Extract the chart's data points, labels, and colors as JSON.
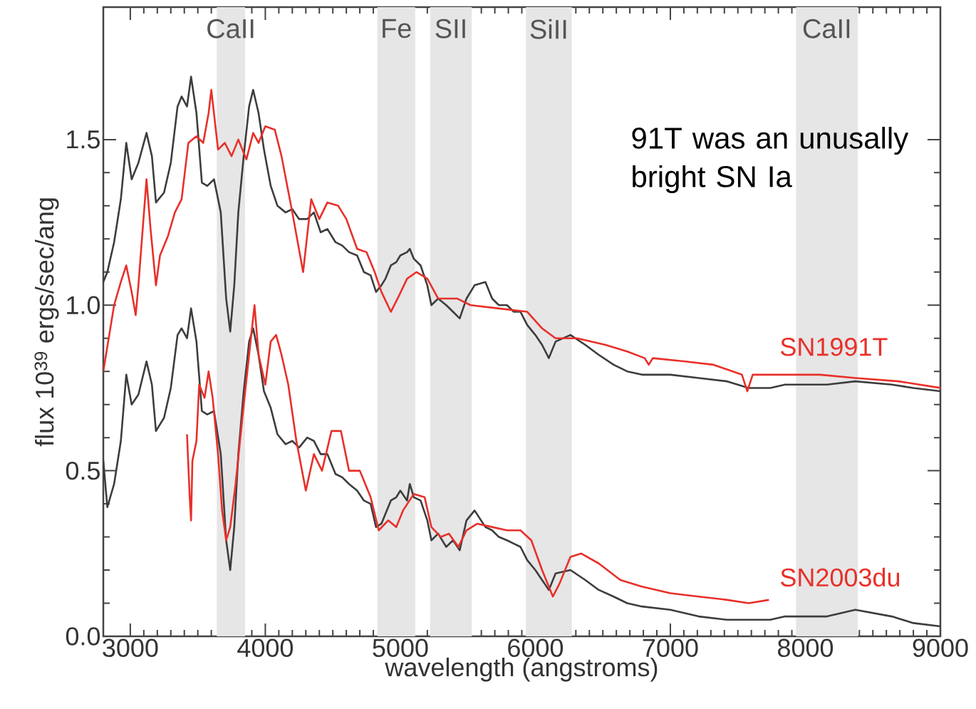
{
  "chart_data": {
    "type": "line",
    "xlabel": "wavelength (angstroms)",
    "ylabel": "flux 10$^{39}$ ergs/sec/ang",
    "xlim": [
      2800,
      9000
    ],
    "ylim": [
      0,
      1.9
    ],
    "xticks": [
      3000,
      4000,
      5000,
      6000,
      7000,
      8000,
      9000
    ],
    "yticks": [
      {
        "value": 0,
        "label": "0.0"
      },
      {
        "value": 0.5,
        "label": "0.5"
      },
      {
        "value": 1,
        "label": "1.0"
      },
      {
        "value": 1.5,
        "label": "1.5"
      }
    ],
    "annotations": [
      "91T was an unusally bright SN Ia"
    ],
    "bands": [
      {
        "axis": "x",
        "from": 3640,
        "to": 3850,
        "label": "CaII",
        "color": "#e6e6e6"
      },
      {
        "axis": "x",
        "from": 4830,
        "to": 5110,
        "label": "Fe",
        "color": "#e6e6e6"
      },
      {
        "axis": "x",
        "from": 5220,
        "to": 5530,
        "label": "SII",
        "color": "#e6e6e6"
      },
      {
        "axis": "x",
        "from": 5930,
        "to": 6270,
        "label": "SiII",
        "color": "#e6e6e6"
      },
      {
        "axis": "x",
        "from": 7930,
        "to": 8390,
        "label": "CaII",
        "color": "#e6e6e6"
      }
    ],
    "series": [
      {
        "color": "#3d3d3d",
        "x": [
          2800,
          2830,
          2880,
          2930,
          2970,
          3010,
          3060,
          3120,
          3160,
          3190,
          3250,
          3300,
          3350,
          3380,
          3420,
          3450,
          3490,
          3530,
          3570,
          3620,
          3670,
          3710,
          3740,
          3770,
          3800,
          3840,
          3880,
          3910,
          3950,
          3990,
          4040,
          4090,
          4150,
          4200,
          4250,
          4310,
          4360,
          4410,
          4460,
          4520,
          4570,
          4620,
          4680,
          4730,
          4780,
          4820,
          4860,
          4890,
          4930,
          4970,
          5000,
          5050,
          5070,
          5100,
          5150,
          5200,
          5230,
          5280,
          5340,
          5390,
          5440,
          5490,
          5550,
          5630,
          5680,
          5730,
          5790,
          5840,
          5890,
          5940,
          6000,
          6050,
          6100,
          6150,
          6260,
          6370,
          6470,
          6580,
          6680,
          6790,
          7000,
          7210,
          7420,
          7580,
          7740,
          7850,
          8000,
          8160,
          8370,
          8640,
          8800,
          9000
        ],
        "values": [
          1.07,
          1.1,
          1.19,
          1.32,
          1.49,
          1.38,
          1.43,
          1.52,
          1.45,
          1.31,
          1.34,
          1.43,
          1.6,
          1.63,
          1.6,
          1.69,
          1.58,
          1.37,
          1.36,
          1.38,
          1.28,
          1.02,
          0.92,
          1.06,
          1.28,
          1.45,
          1.6,
          1.65,
          1.58,
          1.47,
          1.36,
          1.3,
          1.28,
          1.29,
          1.26,
          1.26,
          1.28,
          1.22,
          1.23,
          1.19,
          1.18,
          1.16,
          1.15,
          1.1,
          1.09,
          1.04,
          1.06,
          1.08,
          1.12,
          1.13,
          1.15,
          1.16,
          1.17,
          1.14,
          1.12,
          1.06,
          1.0,
          1.02,
          1.0,
          0.98,
          0.96,
          1.02,
          1.06,
          1.07,
          1.02,
          1.0,
          1.0,
          0.98,
          0.98,
          0.94,
          0.91,
          0.88,
          0.84,
          0.89,
          0.91,
          0.88,
          0.85,
          0.82,
          0.8,
          0.79,
          0.79,
          0.78,
          0.77,
          0.75,
          0.75,
          0.76,
          0.76,
          0.76,
          0.77,
          0.76,
          0.75,
          0.74
        ]
      },
      {
        "name": "SN1991T",
        "color": "#e8302a",
        "x": [
          2800,
          2880,
          2930,
          2970,
          3010,
          3040,
          3060,
          3120,
          3150,
          3190,
          3220,
          3280,
          3330,
          3380,
          3430,
          3490,
          3540,
          3580,
          3600,
          3650,
          3700,
          3750,
          3800,
          3860,
          3910,
          3950,
          4000,
          4070,
          4120,
          4200,
          4280,
          4340,
          4400,
          4460,
          4540,
          4600,
          4680,
          4750,
          4810,
          4860,
          4930,
          4980,
          5050,
          5120,
          5200,
          5280,
          5420,
          5520,
          5730,
          5940,
          6050,
          6150,
          6310,
          6520,
          6680,
          6810,
          6840,
          6870,
          7110,
          7320,
          7530,
          7570,
          7610,
          7850,
          8110,
          8370,
          8690,
          9000
        ],
        "values": [
          0.8,
          1.0,
          1.07,
          1.12,
          1.04,
          0.97,
          1.06,
          1.38,
          1.23,
          1.06,
          1.15,
          1.21,
          1.28,
          1.32,
          1.49,
          1.51,
          1.49,
          1.58,
          1.65,
          1.47,
          1.49,
          1.45,
          1.5,
          1.44,
          1.52,
          1.49,
          1.54,
          1.53,
          1.45,
          1.28,
          1.1,
          1.32,
          1.26,
          1.31,
          1.3,
          1.26,
          1.17,
          1.16,
          1.1,
          1.04,
          0.98,
          1.02,
          1.08,
          1.1,
          1.08,
          1.02,
          1.02,
          1.0,
          0.99,
          0.98,
          0.93,
          0.9,
          0.9,
          0.88,
          0.86,
          0.84,
          0.82,
          0.84,
          0.83,
          0.82,
          0.79,
          0.74,
          0.79,
          0.79,
          0.79,
          0.78,
          0.77,
          0.75
        ]
      },
      {
        "color": "#3d3d3d",
        "x": [
          2800,
          2830,
          2880,
          2930,
          2970,
          3010,
          3060,
          3120,
          3160,
          3190,
          3250,
          3300,
          3350,
          3380,
          3420,
          3450,
          3490,
          3530,
          3570,
          3620,
          3670,
          3710,
          3740,
          3770,
          3800,
          3840,
          3880,
          3910,
          3950,
          3990,
          4040,
          4090,
          4150,
          4200,
          4250,
          4310,
          4360,
          4410,
          4460,
          4520,
          4570,
          4620,
          4680,
          4730,
          4780,
          4820,
          4860,
          4890,
          4930,
          4970,
          5000,
          5050,
          5070,
          5100,
          5150,
          5200,
          5230,
          5280,
          5340,
          5390,
          5440,
          5490,
          5550,
          5630,
          5680,
          5730,
          5790,
          5840,
          5890,
          5940,
          6000,
          6050,
          6100,
          6150,
          6260,
          6370,
          6470,
          6580,
          6680,
          6790,
          7000,
          7210,
          7420,
          7580,
          7740,
          7850,
          8000,
          8160,
          8370,
          8640,
          8800,
          9000
        ],
        "values": [
          0.53,
          0.39,
          0.46,
          0.59,
          0.79,
          0.7,
          0.73,
          0.83,
          0.76,
          0.62,
          0.66,
          0.75,
          0.91,
          0.93,
          0.9,
          0.99,
          0.89,
          0.68,
          0.67,
          0.68,
          0.55,
          0.29,
          0.2,
          0.33,
          0.55,
          0.74,
          0.89,
          0.93,
          0.85,
          0.74,
          0.69,
          0.61,
          0.58,
          0.59,
          0.57,
          0.6,
          0.59,
          0.55,
          0.55,
          0.49,
          0.48,
          0.46,
          0.44,
          0.41,
          0.4,
          0.33,
          0.34,
          0.37,
          0.41,
          0.42,
          0.44,
          0.41,
          0.46,
          0.42,
          0.41,
          0.35,
          0.29,
          0.31,
          0.27,
          0.29,
          0.26,
          0.35,
          0.38,
          0.33,
          0.32,
          0.3,
          0.29,
          0.28,
          0.27,
          0.23,
          0.2,
          0.17,
          0.14,
          0.19,
          0.2,
          0.17,
          0.14,
          0.12,
          0.1,
          0.09,
          0.08,
          0.06,
          0.05,
          0.05,
          0.05,
          0.06,
          0.06,
          0.06,
          0.08,
          0.06,
          0.04,
          0.03
        ]
      },
      {
        "name": "SN2003du",
        "color": "#e8302a",
        "x": [
          3420,
          3440,
          3450,
          3460,
          3490,
          3510,
          3550,
          3580,
          3610,
          3650,
          3680,
          3710,
          3740,
          3780,
          3830,
          3880,
          3920,
          3950,
          4000,
          4040,
          4080,
          4120,
          4170,
          4230,
          4300,
          4360,
          4420,
          4490,
          4560,
          4620,
          4700,
          4780,
          4840,
          4910,
          4970,
          5020,
          5100,
          5180,
          5230,
          5300,
          5360,
          5430,
          5490,
          5570,
          5680,
          5790,
          5890,
          5970,
          6050,
          6130,
          6180,
          6260,
          6340,
          6470,
          6630,
          6790,
          7000,
          7210,
          7420,
          7580,
          7730
        ],
        "values": [
          0.61,
          0.42,
          0.35,
          0.53,
          0.59,
          0.76,
          0.72,
          0.8,
          0.72,
          0.55,
          0.38,
          0.29,
          0.33,
          0.46,
          0.66,
          0.85,
          1.0,
          0.85,
          0.76,
          0.89,
          0.91,
          0.85,
          0.76,
          0.59,
          0.44,
          0.55,
          0.5,
          0.62,
          0.62,
          0.5,
          0.5,
          0.42,
          0.32,
          0.35,
          0.33,
          0.38,
          0.43,
          0.42,
          0.33,
          0.3,
          0.31,
          0.27,
          0.32,
          0.34,
          0.33,
          0.32,
          0.32,
          0.29,
          0.2,
          0.12,
          0.16,
          0.24,
          0.25,
          0.22,
          0.17,
          0.15,
          0.13,
          0.12,
          0.11,
          0.1,
          0.11
        ]
      }
    ]
  }
}
